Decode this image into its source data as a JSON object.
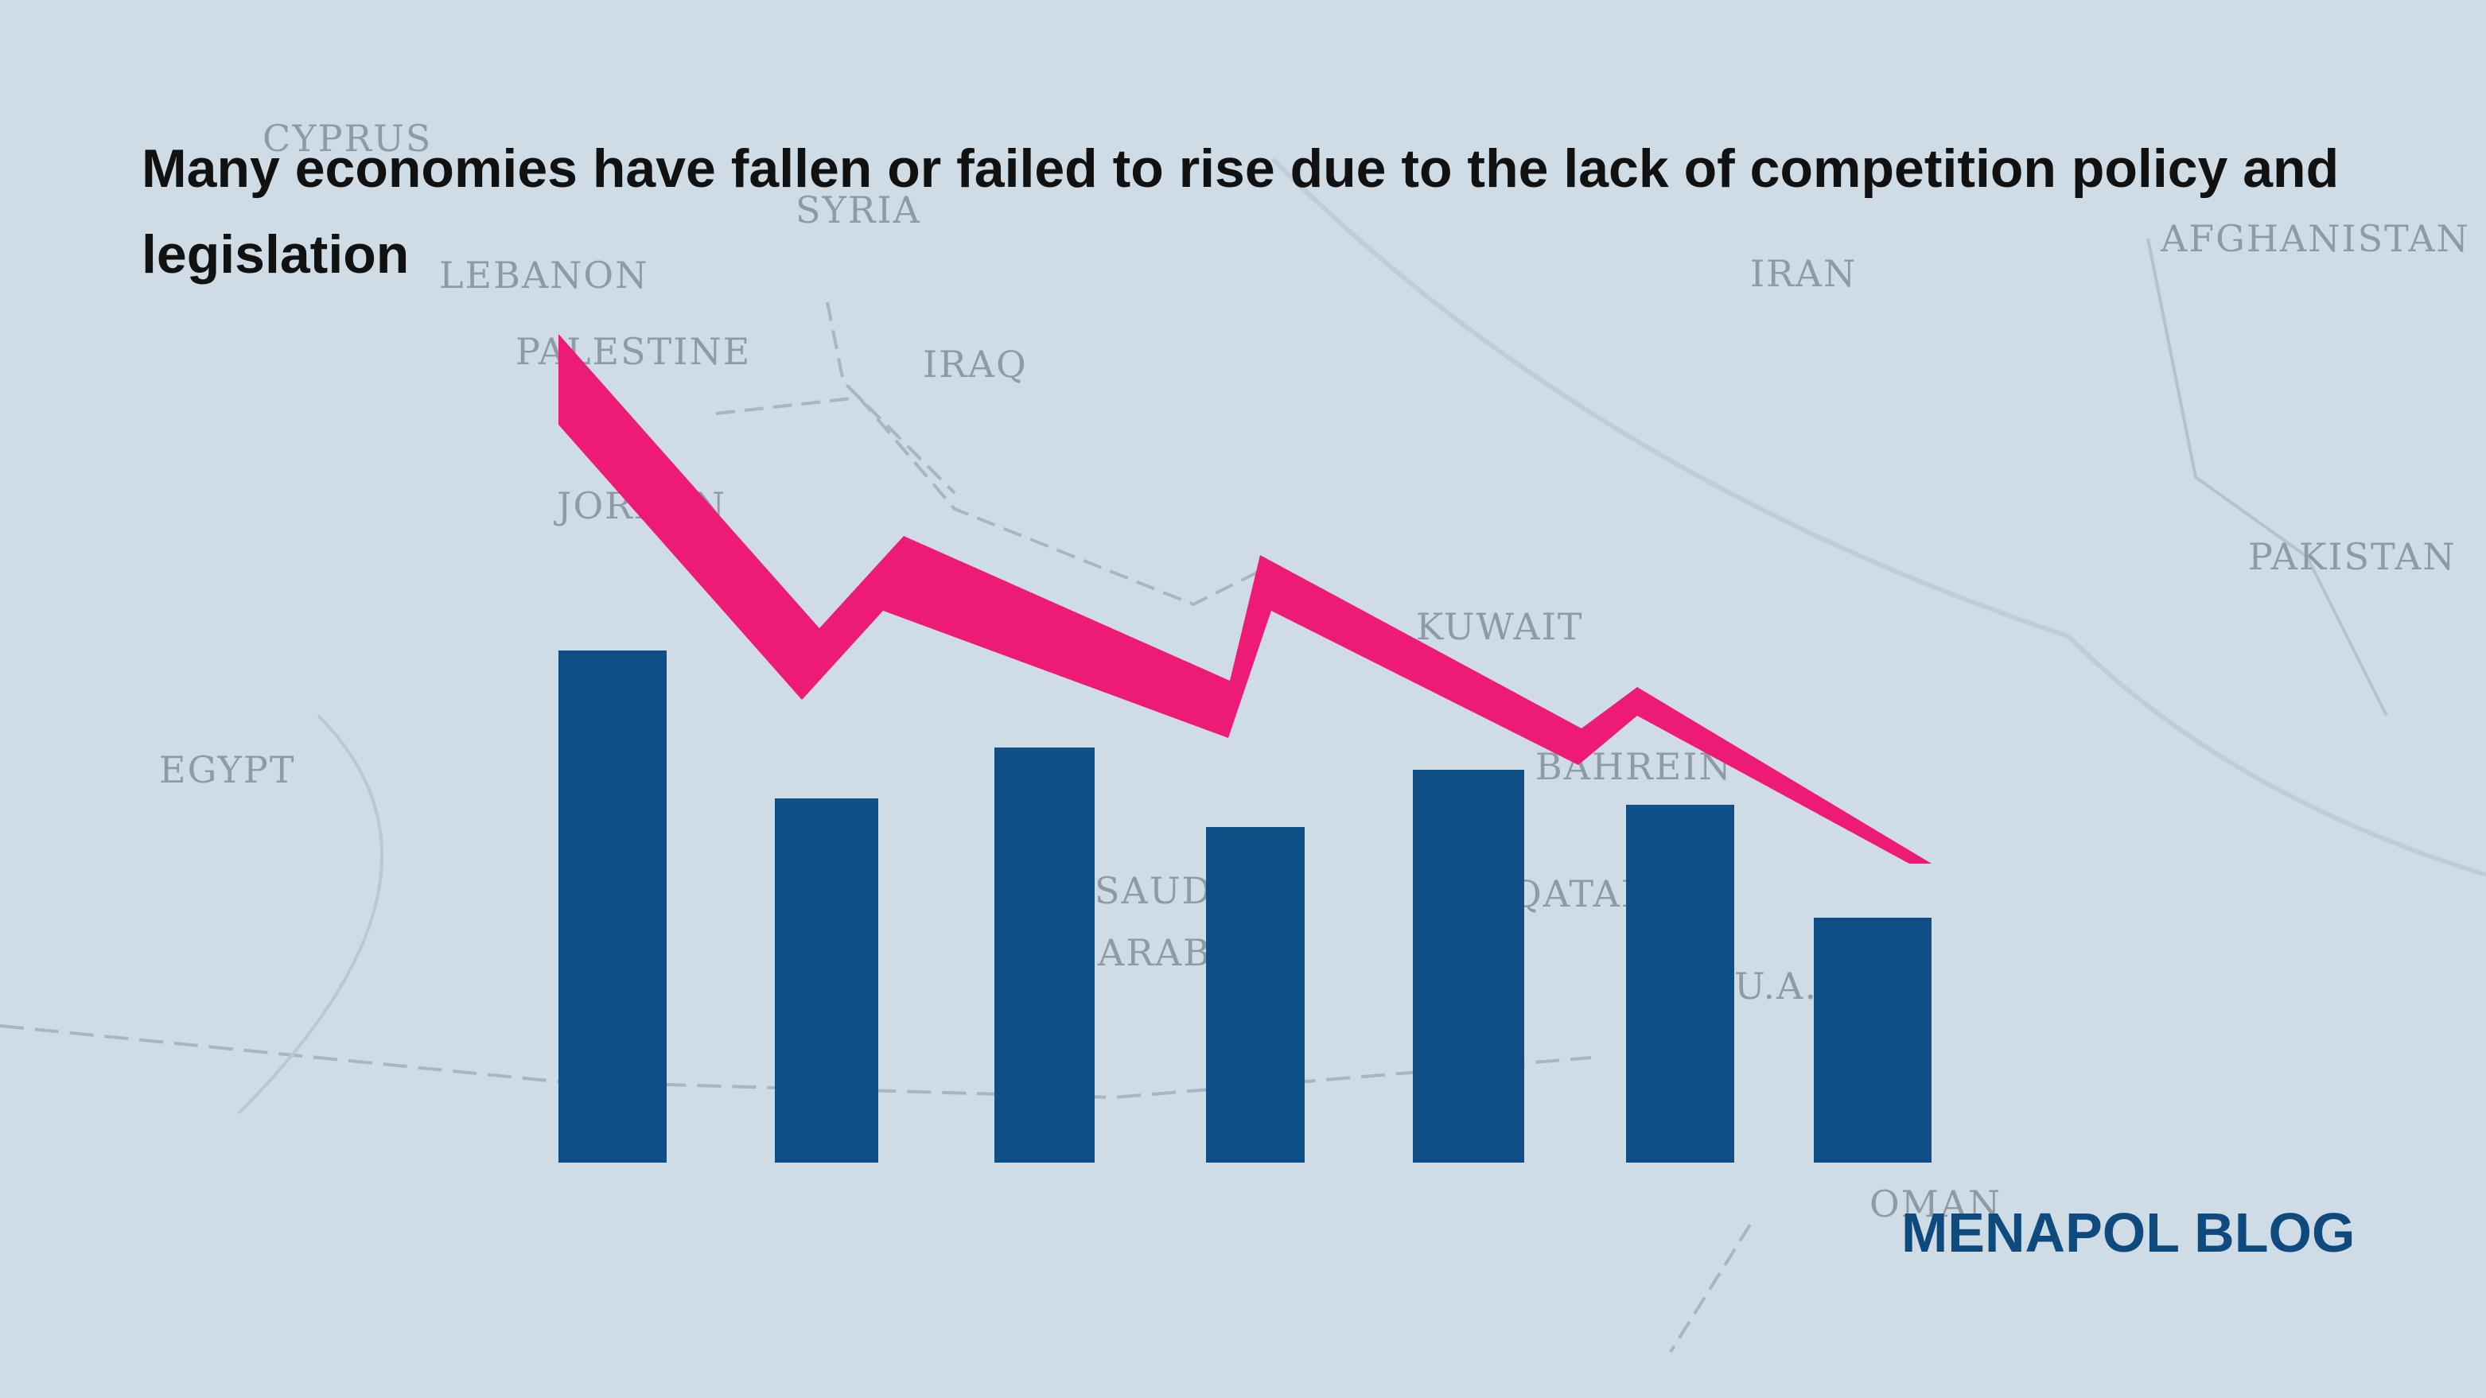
{
  "header": {
    "title": "Many economies have fallen or failed to rise due to the lack of competition policy and legislation"
  },
  "map_labels": [
    "CYPRUS",
    "SYRIA",
    "LEBANON",
    "PALESTINE",
    "IRAQ",
    "IRAN",
    "AFGHANISTAN",
    "JORDAN",
    "PAKISTAN",
    "KUWAIT",
    "EGYPT",
    "BAHREIN",
    "SAUDI",
    "ARABIA",
    "QATAR",
    "U.A.E.",
    "OMAN"
  ],
  "brand": "MENAPOL BLOG"
}
